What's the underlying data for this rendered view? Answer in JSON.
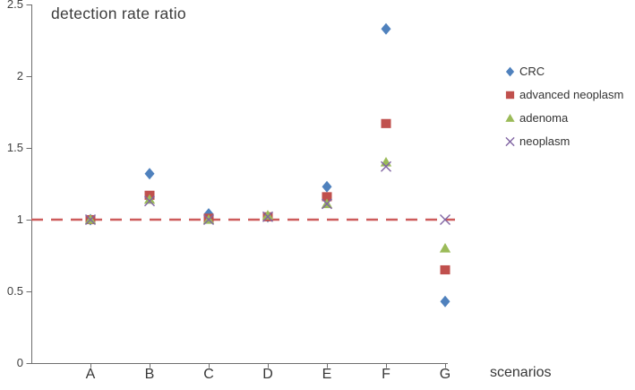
{
  "chart_data": {
    "type": "scatter",
    "title": "detection rate ratio",
    "xlabel": "scenarios",
    "ylabel": "",
    "categories": [
      "A",
      "B",
      "C",
      "D",
      "E",
      "F",
      "G"
    ],
    "ytick_labels": [
      "2.5",
      "2",
      "1.5",
      "1",
      "0.5",
      "0"
    ],
    "ylim": [
      0,
      2.5
    ],
    "grid": false,
    "legend_position": "right",
    "reference_line": {
      "y": 1.0,
      "style": "dashed",
      "color": "#cd5b5b"
    },
    "axis_color": "#6e6e6e",
    "series": [
      {
        "name": "CRC",
        "marker": "diamond",
        "color": "#4f81bd",
        "values": [
          1.0,
          1.32,
          1.04,
          1.02,
          1.23,
          2.33,
          0.43
        ]
      },
      {
        "name": "advanced neoplasm",
        "marker": "square",
        "color": "#c0504d",
        "values": [
          1.0,
          1.17,
          1.01,
          1.02,
          1.16,
          1.67,
          0.65
        ]
      },
      {
        "name": "adenoma",
        "marker": "triangle",
        "color": "#9bbb59",
        "values": [
          1.0,
          1.14,
          1.0,
          1.03,
          1.11,
          1.4,
          0.8
        ]
      },
      {
        "name": "neoplasm",
        "marker": "x",
        "color": "#8064a2",
        "values": [
          1.0,
          1.13,
          1.0,
          1.02,
          1.11,
          1.37,
          1.0
        ]
      }
    ]
  }
}
